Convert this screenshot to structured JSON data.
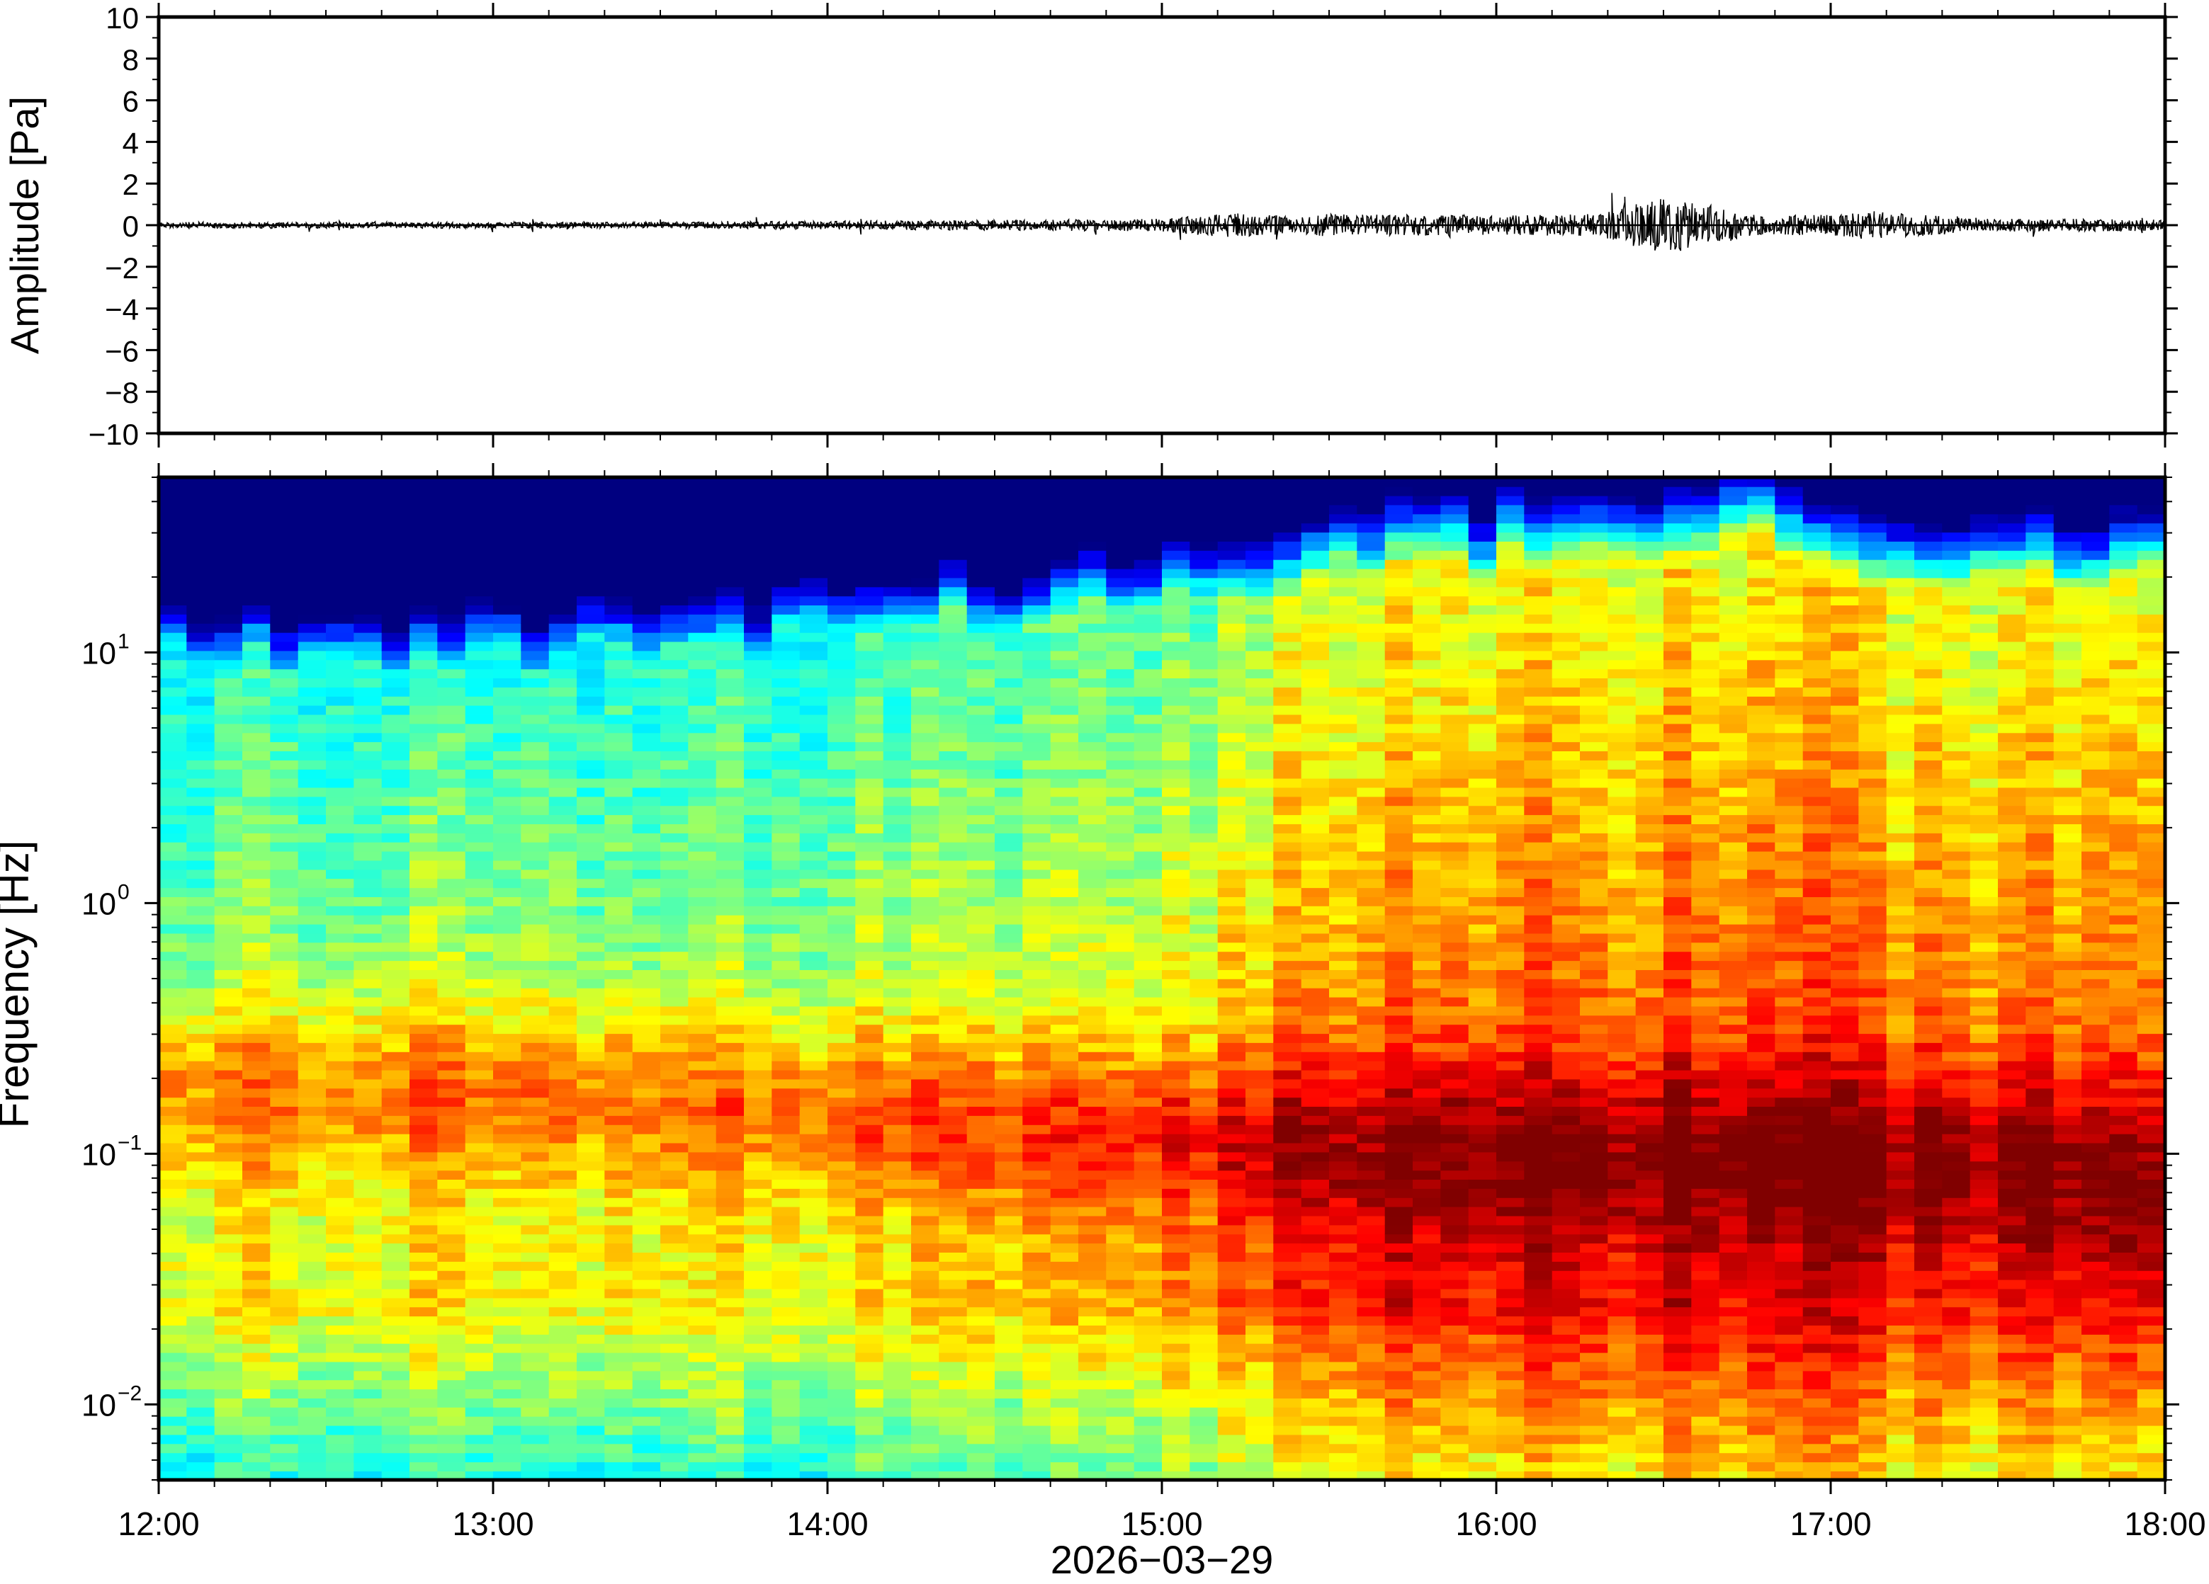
{
  "chart_data": [
    {
      "type": "line",
      "ylabel": "Amplitude [Pa]",
      "ylim": [
        -10,
        10
      ],
      "yticks": [
        10,
        8,
        6,
        4,
        2,
        0,
        -2,
        -4,
        -6,
        -8,
        -10
      ],
      "ytick_labels": [
        "10",
        "8",
        "6",
        "4",
        "2",
        "0",
        "−2",
        "−4",
        "−6",
        "−8",
        "−10"
      ],
      "x_range": [
        "12:00",
        "18:00"
      ],
      "grid": false,
      "series": [
        {
          "x_hours": [
            12.0,
            12.5,
            13.0,
            13.5,
            14.0,
            14.5,
            15.0,
            15.2,
            15.4,
            15.5,
            15.8,
            16.0,
            16.3,
            16.5,
            16.8,
            17.0,
            17.1,
            17.5,
            18.0
          ],
          "envelope_pa": [
            0.15,
            0.15,
            0.15,
            0.15,
            0.2,
            0.25,
            0.3,
            0.6,
            0.4,
            0.55,
            0.5,
            0.45,
            0.55,
            1.4,
            0.45,
            0.5,
            0.7,
            0.3,
            0.3
          ]
        }
      ],
      "color": "#000000"
    },
    {
      "type": "heatmap",
      "ylabel": "Frequency [Hz]",
      "yscale": "log",
      "ylim_hz": [
        0.005,
        50
      ],
      "yticks": [
        "10^1",
        "10^0",
        "10^-1",
        "10^-2"
      ],
      "xlabel": "2026−03−29",
      "xtick_labels": [
        "12:00",
        "13:00",
        "14:00",
        "15:00",
        "16:00",
        "17:00",
        "18:00"
      ],
      "colormap": "jet",
      "grid": false,
      "ridge_peak_hz": {
        "x_hours": [
          12.0,
          13.0,
          14.0,
          15.0,
          16.0,
          17.0,
          18.0
        ],
        "values": [
          0.18,
          0.18,
          0.15,
          0.12,
          0.1,
          0.1,
          0.08
        ]
      },
      "upper_cutoff_hz": {
        "x_hours": [
          12.0,
          13.0,
          14.0,
          15.0,
          15.5,
          16.0,
          16.4,
          16.8,
          17.0,
          18.0
        ],
        "values": [
          10,
          9,
          12,
          15,
          20,
          22,
          25,
          28,
          20,
          18
        ]
      }
    }
  ]
}
